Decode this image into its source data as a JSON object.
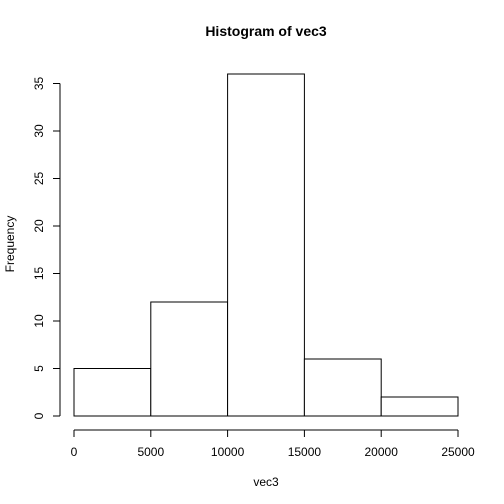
{
  "chart_data": {
    "type": "bar",
    "title": "Histogram of vec3",
    "xlabel": "vec3",
    "ylabel": "Frequency",
    "bins": [
      {
        "start": 0,
        "end": 5000,
        "count": 5
      },
      {
        "start": 5000,
        "end": 10000,
        "count": 12
      },
      {
        "start": 10000,
        "end": 15000,
        "count": 36
      },
      {
        "start": 15000,
        "end": 20000,
        "count": 6
      },
      {
        "start": 20000,
        "end": 25000,
        "count": 2
      }
    ],
    "xlim": [
      0,
      25000
    ],
    "ylim": [
      0,
      36
    ],
    "x_ticks": [
      0,
      5000,
      10000,
      15000,
      20000,
      25000
    ],
    "x_tick_labels": [
      "0",
      "5000",
      "10000",
      "15000",
      "20000",
      "25000"
    ],
    "y_ticks": [
      0,
      5,
      10,
      15,
      20,
      25,
      30,
      35
    ],
    "y_tick_labels": [
      "0",
      "5",
      "10",
      "15",
      "20",
      "25",
      "30",
      "35"
    ],
    "grid": false,
    "colors": {
      "bar_fill": "#ffffff",
      "bar_stroke": "#000000"
    }
  }
}
